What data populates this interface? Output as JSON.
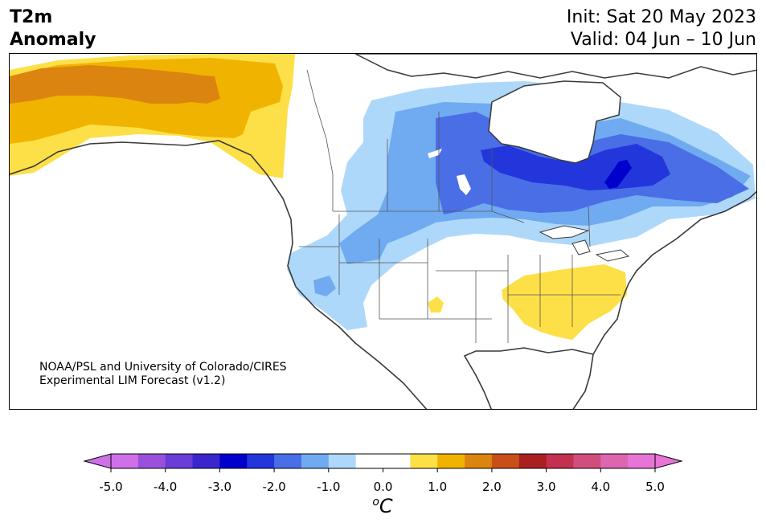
{
  "title": {
    "line1": "T2m",
    "line2": "Anomaly"
  },
  "dates": {
    "init": "Init: Sat 20 May 2023",
    "valid": "Valid: 04 Jun – 10 Jun"
  },
  "credit": {
    "line1": "NOAA/PSL and University of Colorado/CIRES",
    "line2": "Experimental LIM Forecast (v1.2)"
  },
  "colorbar": {
    "ticks": [
      "-5.0",
      "-4.0",
      "-3.0",
      "-2.0",
      "-1.0",
      "0.0",
      "1.0",
      "2.0",
      "3.0",
      "4.0",
      "5.0"
    ],
    "unit_base": "C",
    "unit_sup": "o",
    "colors": [
      "#d070e8",
      "#9a50dc",
      "#6a3cd8",
      "#3a26cc",
      "#0000cc",
      "#2236dc",
      "#4a6ee6",
      "#70aaf0",
      "#aed8fa",
      "#ffffff",
      "#ffffff",
      "#fde047",
      "#f0b400",
      "#dc8410",
      "#c85018",
      "#aa2020",
      "#c43050",
      "#d04e7e",
      "#dc66b0",
      "#e874d8"
    ],
    "under_color": "#d070e8",
    "over_color": "#e874d8"
  },
  "colors": {
    "coast": "#3a3a3a",
    "border": "#555555"
  }
}
